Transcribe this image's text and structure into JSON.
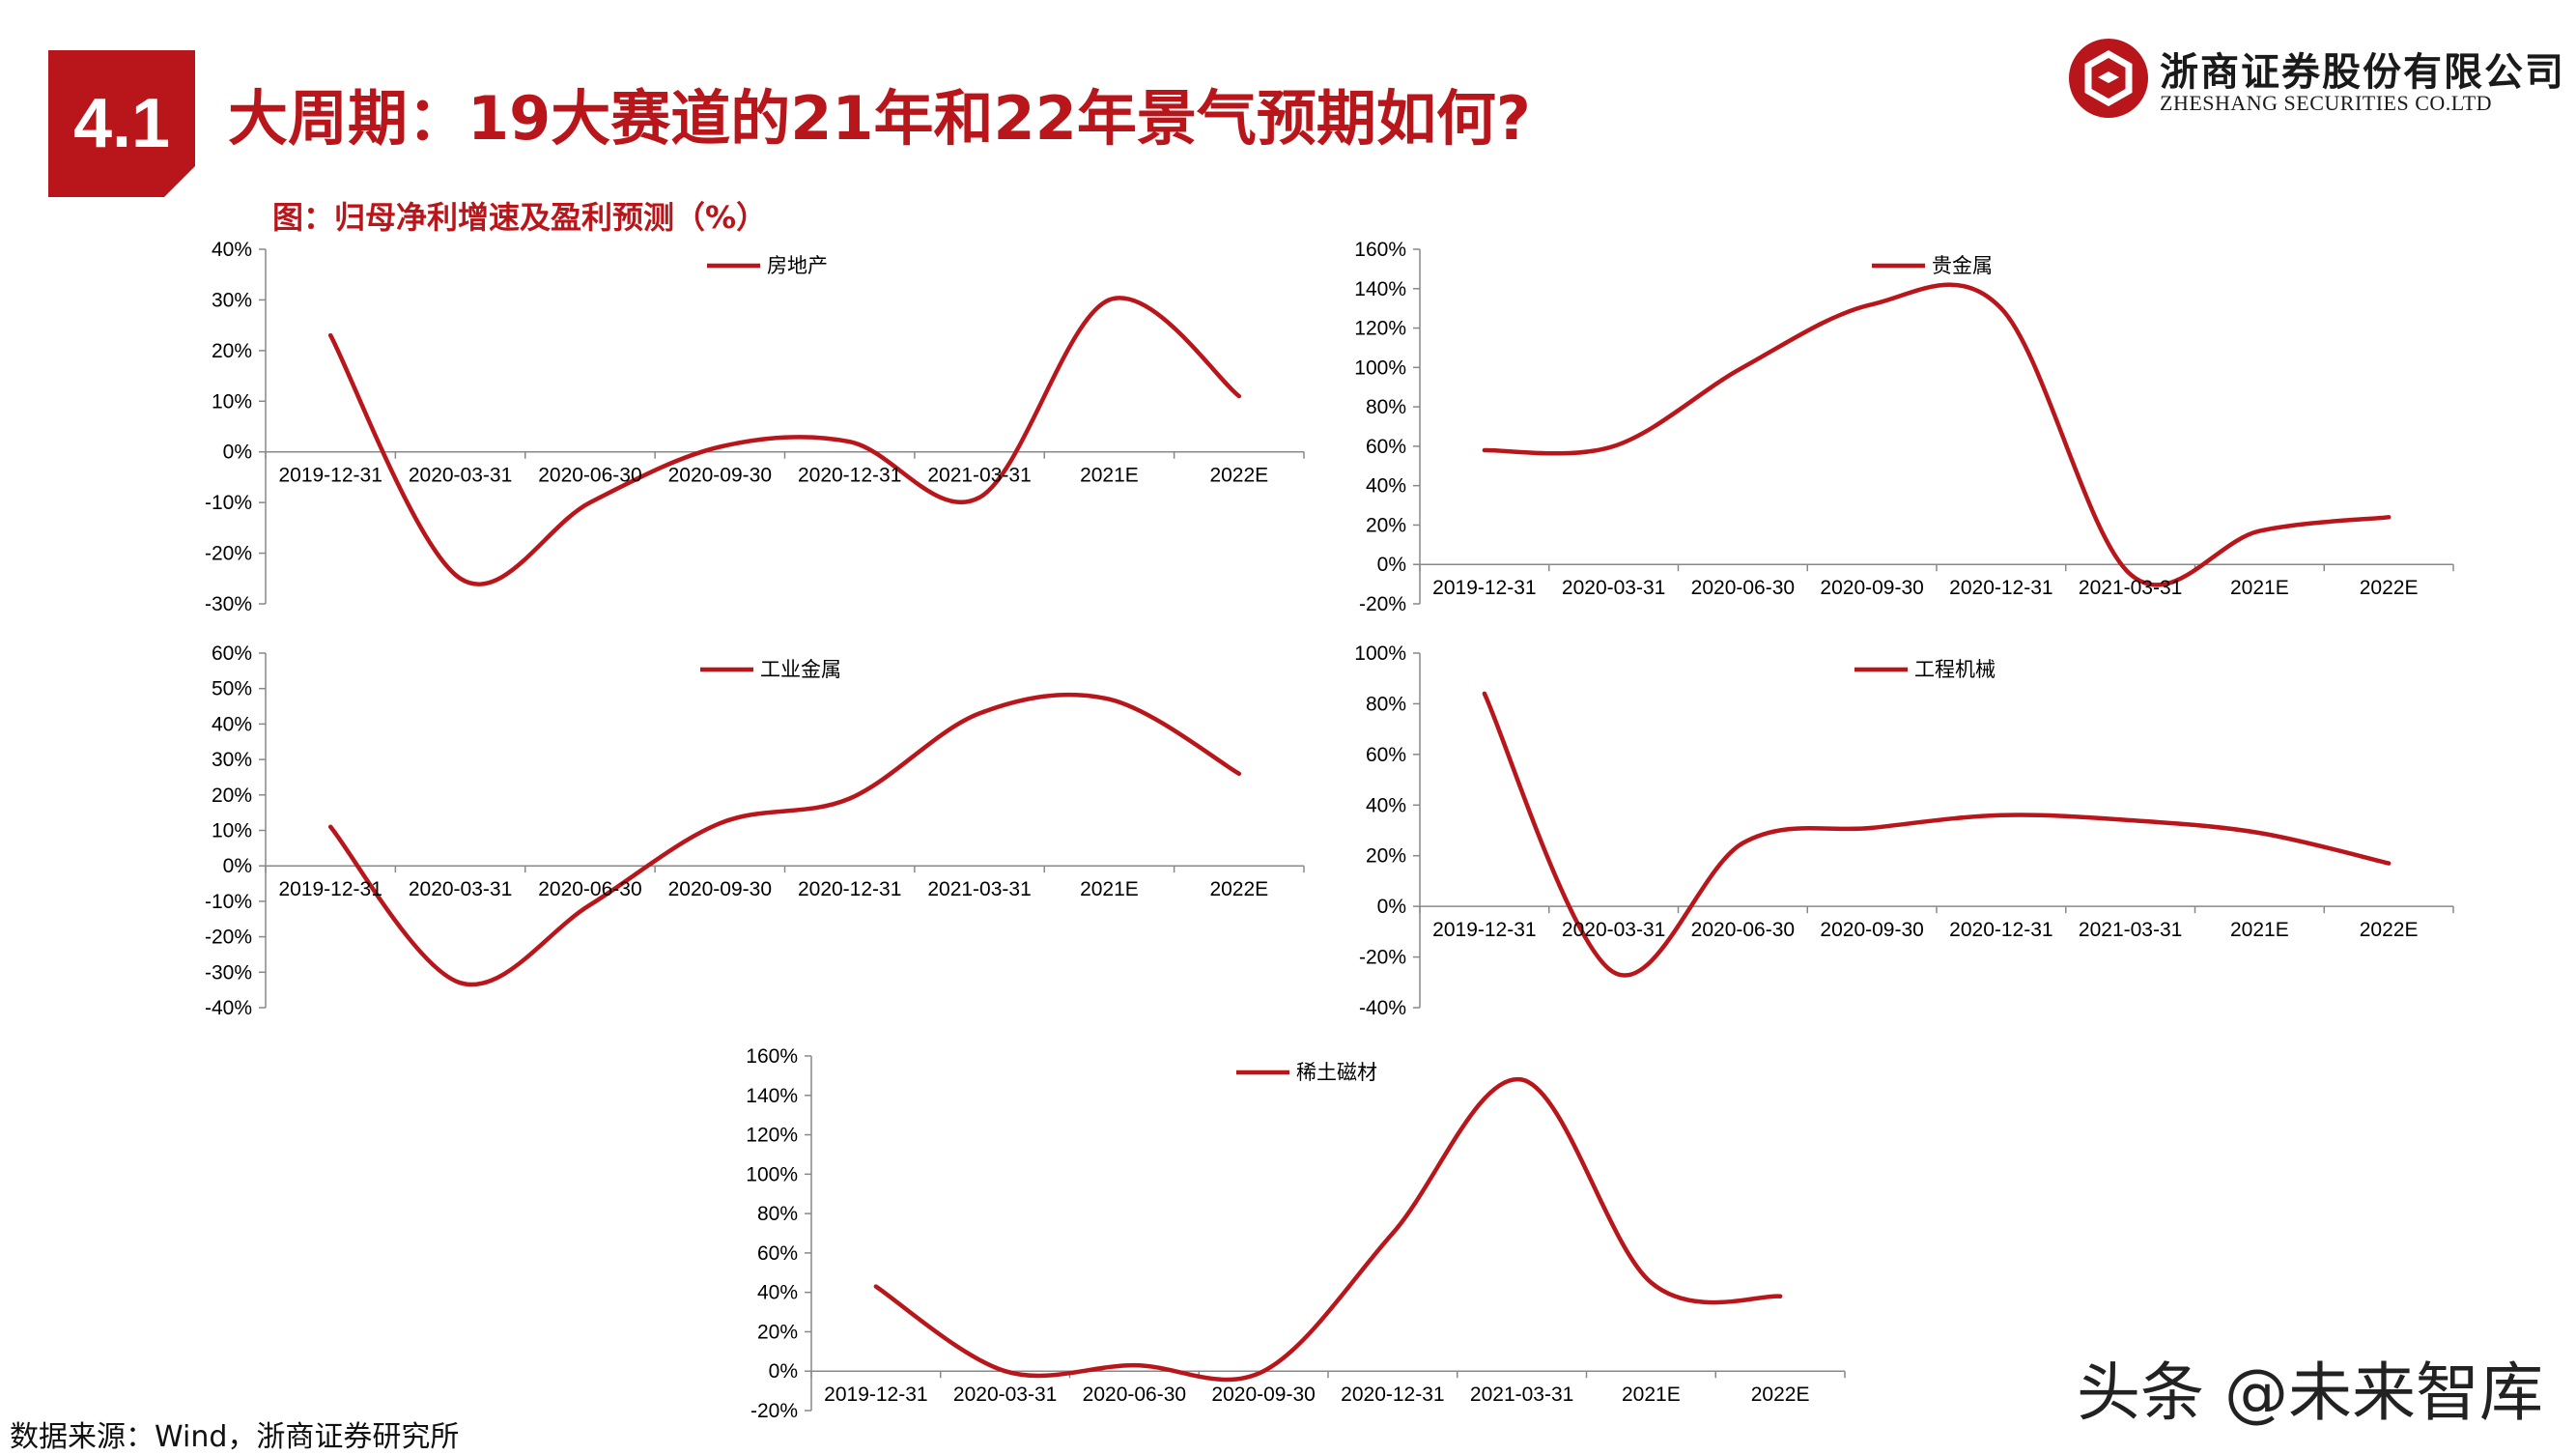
{
  "header": {
    "section_number": "4.1",
    "title": "大周期：19大赛道的21年和22年景气预期如何?"
  },
  "brand": {
    "name_cn": "浙商证券股份有限公司",
    "name_en": "ZHESHANG SECURITIES CO.LTD",
    "color": "#b8161b"
  },
  "figure_title": "图：归母净利增速及盈利预测（%）",
  "source_note": "数据来源：Wind，浙商证券研究所",
  "watermark": "头条 @未来智库",
  "chart_data": [
    {
      "type": "line",
      "categories": [
        "2019-12-31",
        "2020-03-31",
        "2020-06-30",
        "2020-09-30",
        "2020-12-31",
        "2021-03-31",
        "2021E",
        "2022E"
      ],
      "series": [
        {
          "name": "房地产",
          "values": [
            23,
            -25,
            -10,
            1,
            2,
            -9,
            30,
            11
          ],
          "color": "#b8161b"
        }
      ],
      "ylim": [
        -30,
        40
      ],
      "yticks": [
        -30,
        -20,
        -10,
        0,
        10,
        20,
        30,
        40
      ],
      "percent": true,
      "legend": "top-center",
      "grid": false
    },
    {
      "type": "line",
      "categories": [
        "2019-12-31",
        "2020-03-31",
        "2020-06-30",
        "2020-09-30",
        "2020-12-31",
        "2021-03-31",
        "2021E",
        "2022E"
      ],
      "series": [
        {
          "name": "贵金属",
          "values": [
            58,
            60,
            100,
            132,
            130,
            -5,
            17,
            24
          ],
          "color": "#b8161b"
        }
      ],
      "ylim": [
        -20,
        160
      ],
      "yticks": [
        -20,
        0,
        20,
        40,
        60,
        80,
        100,
        120,
        140,
        160
      ],
      "percent": true,
      "legend": "top-right",
      "grid": false
    },
    {
      "type": "line",
      "categories": [
        "2019-12-31",
        "2020-03-31",
        "2020-06-30",
        "2020-09-30",
        "2020-12-31",
        "2021-03-31",
        "2021E",
        "2022E"
      ],
      "series": [
        {
          "name": "工业金属",
          "values": [
            11,
            -33,
            -11,
            12,
            19,
            43,
            47,
            26
          ],
          "color": "#b8161b"
        }
      ],
      "ylim": [
        -40,
        60
      ],
      "yticks": [
        -40,
        -30,
        -20,
        -10,
        0,
        10,
        20,
        30,
        40,
        50,
        60
      ],
      "percent": true,
      "legend": "top-center",
      "grid": false
    },
    {
      "type": "line",
      "categories": [
        "2019-12-31",
        "2020-03-31",
        "2020-06-30",
        "2020-09-30",
        "2020-12-31",
        "2021-03-31",
        "2021E",
        "2022E"
      ],
      "series": [
        {
          "name": "工程机械",
          "values": [
            84,
            -26,
            25,
            31,
            36,
            34,
            29,
            17
          ],
          "color": "#b8161b"
        }
      ],
      "ylim": [
        -40,
        100
      ],
      "yticks": [
        -40,
        -20,
        0,
        20,
        40,
        60,
        80,
        100
      ],
      "percent": true,
      "legend": "top-center",
      "grid": false
    },
    {
      "type": "line",
      "categories": [
        "2019-12-31",
        "2020-03-31",
        "2020-06-30",
        "2020-09-30",
        "2020-12-31",
        "2021-03-31",
        "2021E",
        "2022E"
      ],
      "series": [
        {
          "name": "稀土磁材",
          "values": [
            43,
            0,
            3,
            0,
            70,
            148,
            45,
            38
          ],
          "color": "#b8161b"
        }
      ],
      "ylim": [
        -20,
        160
      ],
      "yticks": [
        -20,
        0,
        20,
        40,
        60,
        80,
        100,
        120,
        140,
        160
      ],
      "percent": true,
      "legend": "top-center",
      "grid": false
    }
  ]
}
